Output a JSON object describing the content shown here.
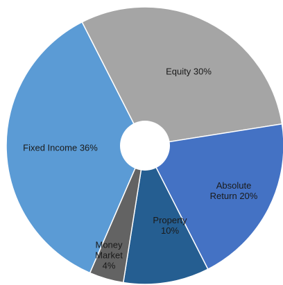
{
  "chart_data": {
    "type": "pie",
    "categories": [
      "Equity",
      "Absolute Return",
      "Property",
      "Money Market",
      "Fixed Income"
    ],
    "values": [
      30,
      20,
      10,
      4,
      36
    ],
    "value_labels": [
      "30%",
      "20%",
      "10%",
      "4%",
      "36%"
    ],
    "colors": [
      "#a5a5a5",
      "#4472c4",
      "#255e91",
      "#636363",
      "#5b9bd5"
    ]
  }
}
